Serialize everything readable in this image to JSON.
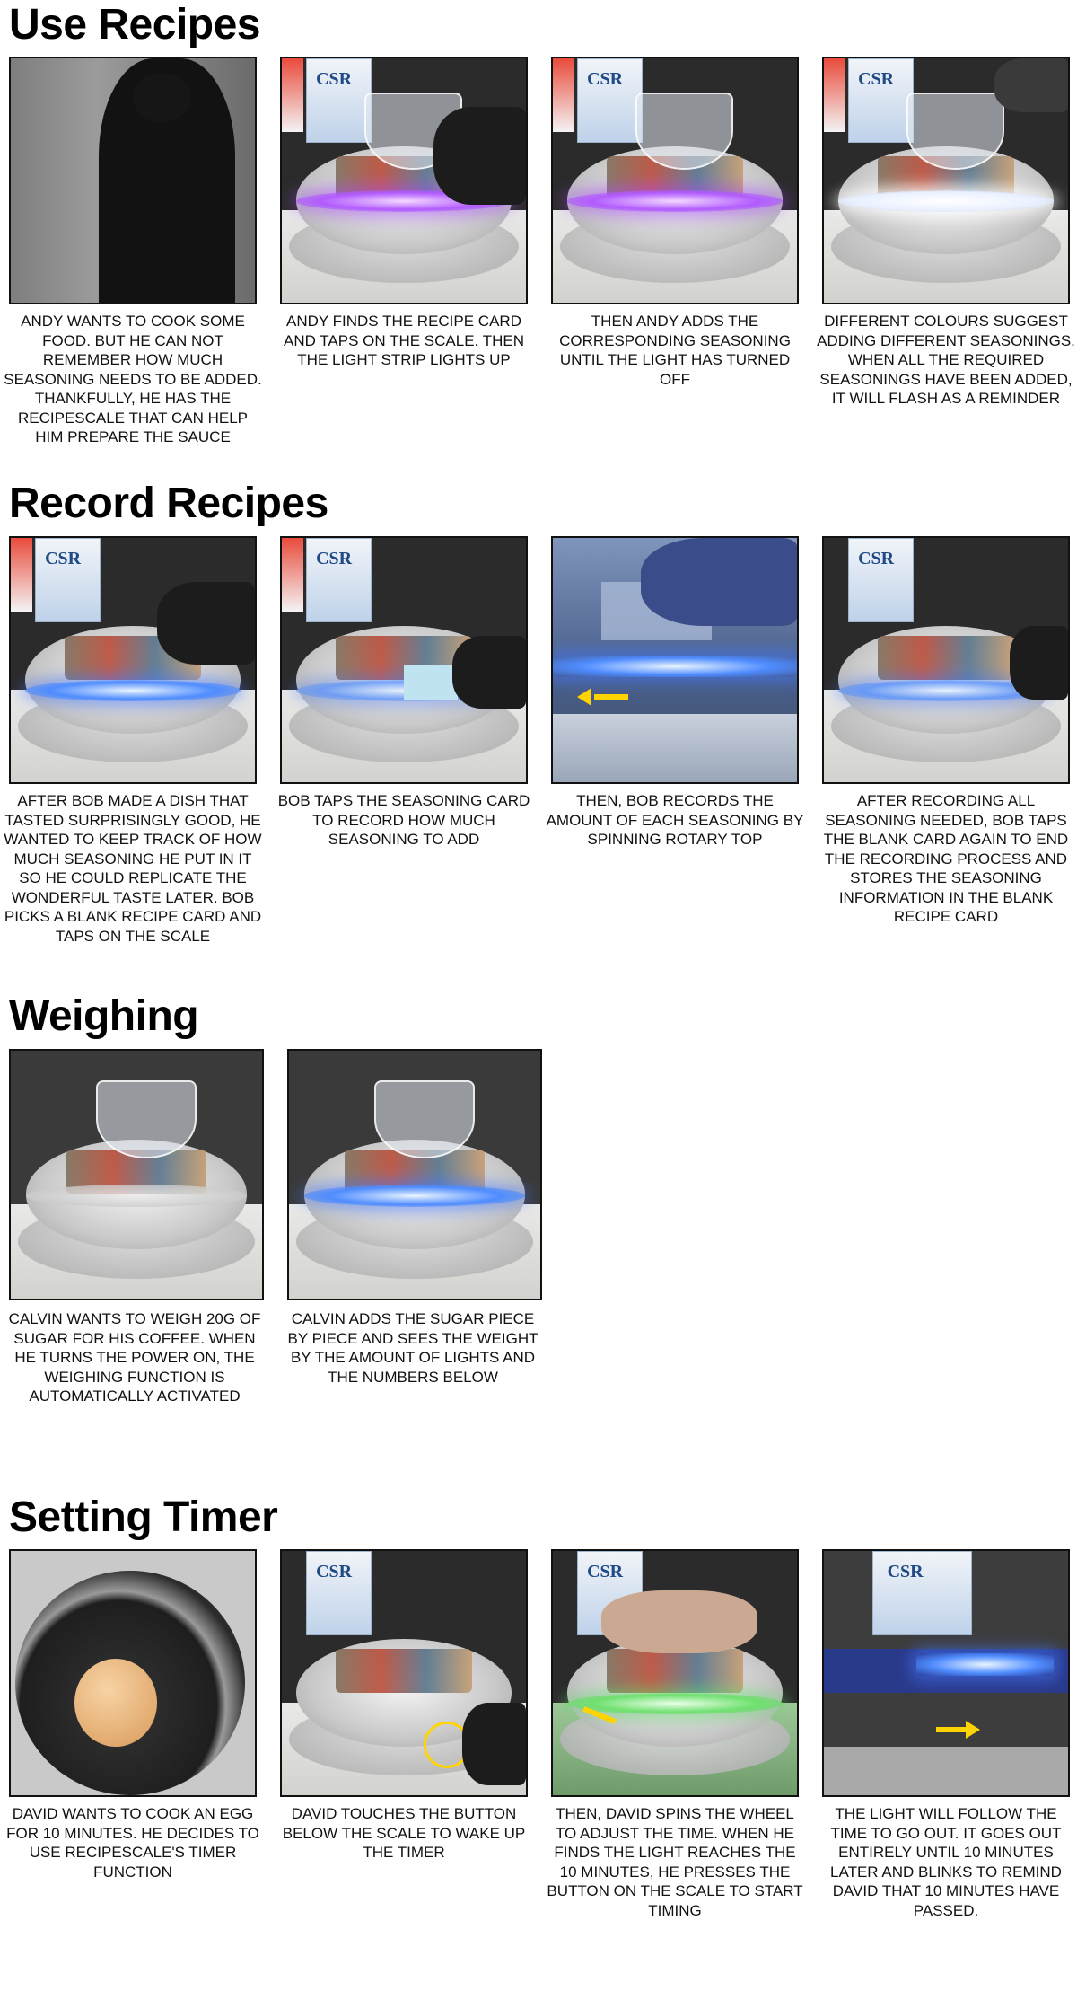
{
  "sections": [
    {
      "title": "Use Recipes",
      "panels": [
        {
          "caption": "ANDY WANTS TO COOK SOME FOOD. BUT HE CAN NOT REMEMBER HOW MUCH SEASONING NEEDS TO BE ADDED. THANKFULLY, HE HAS THE RECIPESCALE THAT CAN HELP HIM PREPARE THE SAUCE"
        },
        {
          "caption": "ANDY FINDS THE RECIPE CARD AND TAPS ON THE SCALE. THEN THE LIGHT STRIP LIGHTS UP"
        },
        {
          "caption": "THEN ANDY ADDS THE CORRESPONDING SEASONING UNTIL THE LIGHT HAS TURNED OFF"
        },
        {
          "caption": "DIFFERENT COLOURS SUGGEST ADDING DIFFERENT SEASONINGS. WHEN ALL THE REQUIRED SEASONINGS HAVE BEEN ADDED, IT WILL FLASH AS A REMINDER"
        }
      ]
    },
    {
      "title": "Record Recipes",
      "panels": [
        {
          "caption": "AFTER BOB MADE A DISH THAT TASTED SURPRISINGLY GOOD, HE WANTED TO KEEP TRACK OF HOW MUCH SEASONING HE PUT IN IT SO HE COULD REPLICATE THE WONDERFUL TASTE LATER. BOB PICKS A BLANK RECIPE CARD AND TAPS ON THE SCALE"
        },
        {
          "caption": "BOB TAPS THE SEASONING CARD TO RECORD HOW MUCH SEASONING TO ADD"
        },
        {
          "caption": "THEN, BOB RECORDS THE AMOUNT OF EACH SEASONING BY SPINNING ROTARY TOP"
        },
        {
          "caption": "AFTER RECORDING ALL SEASONING NEEDED, BOB TAPS THE BLANK CARD AGAIN TO END THE RECORDING PROCESS AND STORES THE SEASONING INFORMATION IN THE BLANK RECIPE CARD"
        }
      ]
    },
    {
      "title": "Weighing",
      "panels": [
        {
          "caption": "CALVIN WANTS TO WEIGH 20G OF SUGAR FOR HIS COFFEE. WHEN HE TURNS THE POWER ON, THE WEIGHING FUNCTION IS AUTOMATICALLY ACTIVATED"
        },
        {
          "caption": "CALVIN ADDS THE SUGAR PIECE BY PIECE AND SEES THE WEIGHT BY THE AMOUNT OF LIGHTS AND THE NUMBERS BELOW"
        }
      ]
    },
    {
      "title": "Setting Timer",
      "panels": [
        {
          "caption": "DAVID WANTS TO COOK AN EGG FOR 10 MINUTES. HE DECIDES TO USE RECIPESCALE'S TIMER FUNCTION"
        },
        {
          "caption": "DAVID TOUCHES THE BUTTON BELOW THE SCALE TO WAKE UP THE TIMER"
        },
        {
          "caption": "THEN, DAVID SPINS THE WHEEL TO ADJUST THE TIME. WHEN HE FINDS THE LIGHT REACHES THE 10 MINUTES, HE PRESSES THE BUTTON ON THE SCALE TO START TIMING"
        },
        {
          "caption": "THE LIGHT WILL FOLLOW THE TIME TO GO OUT. IT GOES OUT ENTIRELY UNTIL 10 MINUTES LATER AND BLINKS TO REMIND DAVID THAT 10 MINUTES HAVE PASSED."
        }
      ]
    }
  ],
  "photo_label": "CSR",
  "colors": {
    "purple_light": "#b25bff",
    "white_light": "#ffffff",
    "blue_light": "#4f8cff",
    "green_light": "#6fe06f",
    "arrow": "#ffd400"
  }
}
